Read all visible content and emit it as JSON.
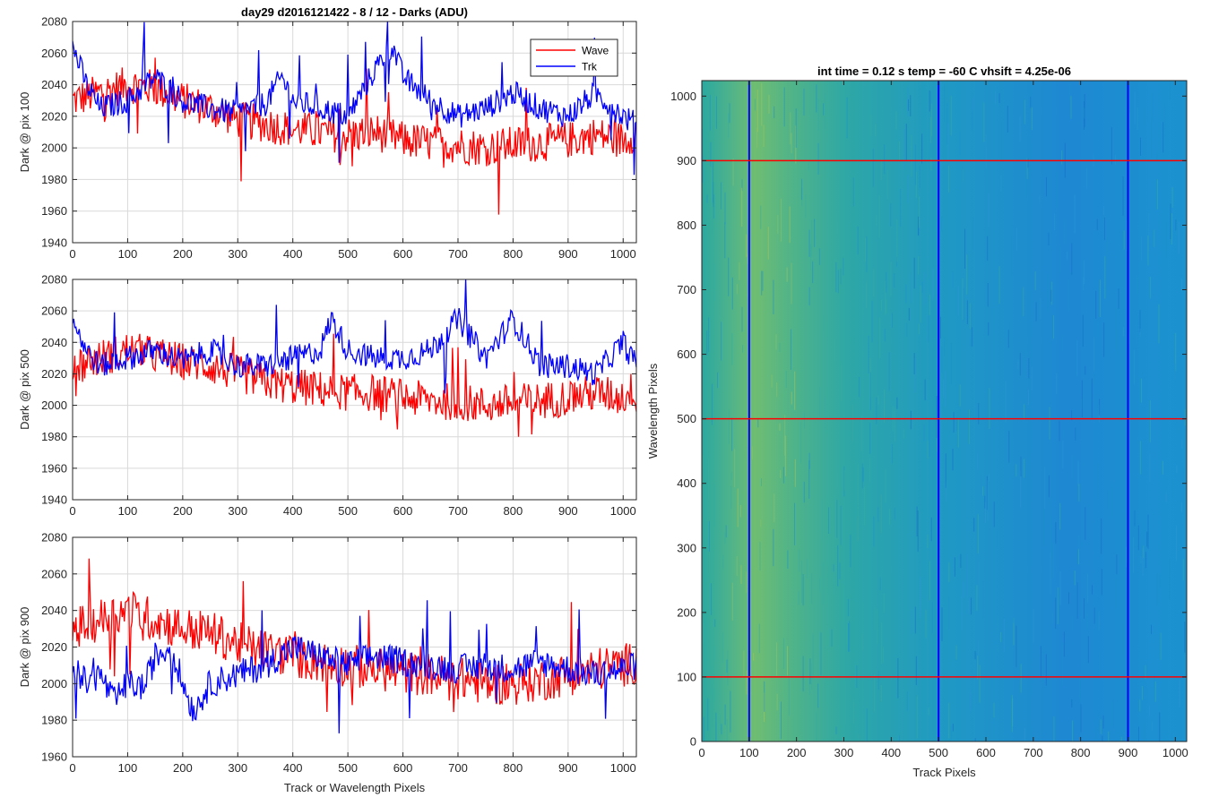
{
  "colors": {
    "wave": "#ff0000",
    "trk": "#0000ff",
    "grid": "#d9d9d9",
    "axis": "#262626"
  },
  "chart_data": [
    {
      "type": "line",
      "title": "day29 d2016121422 - 8 / 12 - Darks (ADU)",
      "xlabel": "",
      "ylabel": "Dark @ pix 100",
      "xlim": [
        0,
        1024
      ],
      "ylim": [
        1940,
        2080
      ],
      "xticks": [
        0,
        100,
        200,
        300,
        400,
        500,
        600,
        700,
        800,
        900,
        1000
      ],
      "yticks": [
        1940,
        1960,
        1980,
        2000,
        2020,
        2040,
        2060,
        2080
      ],
      "grid": true,
      "legend": {
        "position": "top-right",
        "entries": [
          "Wave",
          "Trk"
        ]
      },
      "series": [
        {
          "name": "Wave",
          "color": "#ff0000",
          "x": [
            0,
            50,
            100,
            150,
            200,
            250,
            300,
            350,
            400,
            450,
            500,
            550,
            600,
            650,
            700,
            750,
            800,
            850,
            900,
            950,
            1000,
            1024
          ],
          "values": [
            2030,
            2035,
            2040,
            2038,
            2030,
            2025,
            2018,
            2015,
            2012,
            2010,
            2008,
            2010,
            2005,
            2003,
            2002,
            2000,
            2002,
            2003,
            2005,
            2008,
            2005,
            2010
          ]
        },
        {
          "name": "Trk",
          "color": "#0000ff",
          "x": [
            0,
            25,
            50,
            100,
            150,
            200,
            250,
            300,
            350,
            380,
            400,
            450,
            500,
            550,
            580,
            600,
            650,
            700,
            750,
            800,
            850,
            900,
            950,
            1000,
            1024
          ],
          "values": [
            2065,
            2040,
            2025,
            2030,
            2045,
            2030,
            2025,
            2022,
            2028,
            2045,
            2030,
            2025,
            2020,
            2050,
            2065,
            2045,
            2030,
            2020,
            2025,
            2035,
            2025,
            2020,
            2035,
            2020,
            2015
          ]
        }
      ]
    },
    {
      "type": "line",
      "title": "",
      "xlabel": "",
      "ylabel": "Dark @ pix 500",
      "xlim": [
        0,
        1024
      ],
      "ylim": [
        1940,
        2080
      ],
      "xticks": [
        0,
        100,
        200,
        300,
        400,
        500,
        600,
        700,
        800,
        900,
        1000
      ],
      "yticks": [
        1940,
        1960,
        1980,
        2000,
        2020,
        2040,
        2060,
        2080
      ],
      "grid": true,
      "series": [
        {
          "name": "Wave",
          "color": "#ff0000",
          "x": [
            0,
            50,
            100,
            150,
            200,
            250,
            300,
            350,
            400,
            450,
            500,
            550,
            600,
            650,
            700,
            750,
            800,
            850,
            900,
            950,
            1000,
            1024
          ],
          "values": [
            2025,
            2030,
            2035,
            2032,
            2028,
            2025,
            2020,
            2015,
            2012,
            2010,
            2008,
            2008,
            2005,
            2003,
            2002,
            2000,
            2002,
            2003,
            2005,
            2008,
            2005,
            2012
          ]
        },
        {
          "name": "Trk",
          "color": "#0000ff",
          "x": [
            0,
            25,
            50,
            100,
            150,
            200,
            250,
            300,
            350,
            400,
            450,
            470,
            500,
            550,
            600,
            650,
            700,
            750,
            780,
            800,
            850,
            900,
            950,
            1000,
            1024
          ],
          "values": [
            2055,
            2035,
            2025,
            2030,
            2035,
            2028,
            2035,
            2025,
            2025,
            2030,
            2035,
            2055,
            2035,
            2030,
            2030,
            2035,
            2055,
            2030,
            2045,
            2055,
            2025,
            2025,
            2020,
            2040,
            2025
          ]
        }
      ]
    },
    {
      "type": "line",
      "title": "",
      "xlabel": "Track or Wavelength Pixels",
      "ylabel": "Dark @ pix 900",
      "xlim": [
        0,
        1024
      ],
      "ylim": [
        1960,
        2080
      ],
      "xticks": [
        0,
        100,
        200,
        300,
        400,
        500,
        600,
        700,
        800,
        900,
        1000
      ],
      "yticks": [
        1960,
        1980,
        2000,
        2020,
        2040,
        2060,
        2080
      ],
      "grid": true,
      "series": [
        {
          "name": "Wave",
          "color": "#ff0000",
          "x": [
            0,
            50,
            100,
            150,
            200,
            250,
            300,
            350,
            400,
            450,
            500,
            550,
            600,
            650,
            700,
            750,
            800,
            850,
            900,
            950,
            1000,
            1024
          ],
          "values": [
            2030,
            2035,
            2040,
            2035,
            2030,
            2028,
            2022,
            2018,
            2015,
            2012,
            2010,
            2008,
            2006,
            2005,
            2003,
            2000,
            2000,
            2002,
            2005,
            2008,
            2010,
            2012
          ]
        },
        {
          "name": "Trk",
          "color": "#0000ff",
          "x": [
            0,
            25,
            50,
            75,
            100,
            130,
            150,
            180,
            200,
            220,
            250,
            300,
            350,
            400,
            450,
            500,
            550,
            600,
            650,
            700,
            750,
            800,
            850,
            900,
            950,
            1000,
            1024
          ],
          "values": [
            2010,
            2000,
            2005,
            1990,
            2000,
            1998,
            2015,
            2020,
            2000,
            1985,
            2000,
            2005,
            2010,
            2020,
            2015,
            2010,
            2015,
            2012,
            2010,
            2008,
            2010,
            2008,
            2012,
            2008,
            2005,
            2008,
            2010
          ]
        }
      ]
    },
    {
      "type": "heatmap",
      "title": "int time = 0.12 s    temp = -60 C    vhsift = 4.25e-06",
      "xlabel": "Track Pixels",
      "ylabel": "Wavelength Pixels",
      "xlim": [
        0,
        1024
      ],
      "ylim": [
        0,
        1024
      ],
      "xticks": [
        0,
        100,
        200,
        300,
        400,
        500,
        600,
        700,
        800,
        900,
        1000
      ],
      "yticks": [
        0,
        100,
        200,
        300,
        400,
        500,
        600,
        700,
        800,
        900,
        1000
      ],
      "colormap": "parula",
      "vertical_markers": [
        100,
        500,
        900
      ],
      "horizontal_markers": [
        100,
        500,
        900
      ],
      "vertical_marker_color": "#0000ff",
      "horizontal_marker_color": "#ff0000"
    }
  ]
}
